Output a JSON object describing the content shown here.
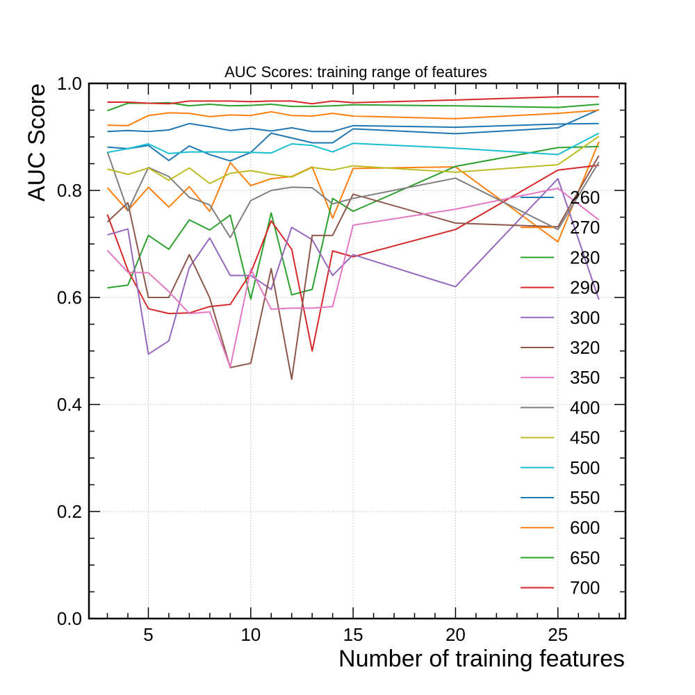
{
  "chart_data": {
    "type": "line",
    "title": "AUC Scores: training range of features",
    "xlabel": "Number of training features",
    "ylabel": "AUC Score",
    "xlim": [
      2.1,
      28.3
    ],
    "ylim": [
      0.0,
      1.0
    ],
    "xticks": [
      5,
      10,
      15,
      20,
      25
    ],
    "xtick_labels": [
      "5",
      "10",
      "15",
      "20",
      "25"
    ],
    "yticks": [
      0.0,
      0.2,
      0.4,
      0.6,
      0.8,
      1.0
    ],
    "ytick_labels": [
      "0.0",
      "0.2",
      "0.4",
      "0.6",
      "0.8",
      "1.0"
    ],
    "grid": true,
    "legend_position": "right",
    "x": [
      3,
      4,
      5,
      6,
      7,
      8,
      9,
      10,
      11,
      12,
      13,
      14,
      15,
      20,
      25,
      27
    ],
    "series": [
      {
        "name": "260",
        "color": "#1f77b4",
        "values": [
          0.881,
          0.878,
          0.884,
          0.856,
          0.883,
          0.867,
          0.855,
          0.871,
          0.907,
          0.898,
          0.889,
          0.889,
          0.915,
          0.906,
          0.917,
          0.951
        ]
      },
      {
        "name": "270",
        "color": "#ff7f0e",
        "values": [
          0.805,
          0.762,
          0.806,
          0.769,
          0.807,
          0.761,
          0.852,
          0.809,
          0.822,
          0.826,
          0.844,
          0.748,
          0.841,
          0.844,
          0.704,
          0.891
        ]
      },
      {
        "name": "280",
        "color": "#2ca02c",
        "values": [
          0.618,
          0.623,
          0.716,
          0.69,
          0.745,
          0.726,
          0.754,
          0.597,
          0.758,
          0.605,
          0.615,
          0.785,
          0.761,
          0.845,
          0.88,
          0.882
        ]
      },
      {
        "name": "290",
        "color": "#d62728",
        "values": [
          0.755,
          0.651,
          0.579,
          0.57,
          0.571,
          0.583,
          0.587,
          0.646,
          0.743,
          0.69,
          0.5,
          0.687,
          0.676,
          0.727,
          0.838,
          0.847
        ]
      },
      {
        "name": "300",
        "color": "#9467bd",
        "values": [
          0.717,
          0.728,
          0.494,
          0.519,
          0.656,
          0.711,
          0.641,
          0.641,
          0.615,
          0.731,
          0.708,
          0.641,
          0.68,
          0.62,
          0.822,
          0.596
        ]
      },
      {
        "name": "320",
        "color": "#8c564b",
        "values": [
          0.741,
          0.777,
          0.6,
          0.6,
          0.68,
          0.599,
          0.469,
          0.477,
          0.654,
          0.447,
          0.716,
          0.716,
          0.793,
          0.739,
          0.732,
          0.865
        ]
      },
      {
        "name": "350",
        "color": "#e377c2",
        "values": [
          0.688,
          0.647,
          0.646,
          0.611,
          0.57,
          0.573,
          0.47,
          0.653,
          0.578,
          0.58,
          0.58,
          0.583,
          0.735,
          0.765,
          0.804,
          0.745
        ]
      },
      {
        "name": "400",
        "color": "#7f7f7f",
        "values": [
          0.872,
          0.762,
          0.843,
          0.826,
          0.787,
          0.773,
          0.712,
          0.781,
          0.8,
          0.806,
          0.805,
          0.775,
          0.785,
          0.823,
          0.727,
          0.853
        ]
      },
      {
        "name": "450",
        "color": "#bcbd22",
        "values": [
          0.84,
          0.83,
          0.842,
          0.819,
          0.842,
          0.813,
          0.832,
          0.837,
          0.83,
          0.825,
          0.843,
          0.838,
          0.846,
          0.834,
          0.848,
          0.901
        ]
      },
      {
        "name": "500",
        "color": "#17becf",
        "values": [
          0.871,
          0.878,
          0.887,
          0.869,
          0.872,
          0.872,
          0.872,
          0.871,
          0.87,
          0.887,
          0.884,
          0.872,
          0.888,
          0.879,
          0.867,
          0.907
        ]
      },
      {
        "name": "550",
        "color": "#1f77b4",
        "values": [
          0.91,
          0.912,
          0.91,
          0.913,
          0.925,
          0.919,
          0.912,
          0.916,
          0.911,
          0.917,
          0.91,
          0.91,
          0.921,
          0.918,
          0.924,
          0.925
        ]
      },
      {
        "name": "600",
        "color": "#ff7f0e",
        "values": [
          0.922,
          0.921,
          0.94,
          0.945,
          0.944,
          0.938,
          0.941,
          0.94,
          0.947,
          0.94,
          0.939,
          0.944,
          0.939,
          0.934,
          0.944,
          0.95
        ]
      },
      {
        "name": "650",
        "color": "#2ca02c",
        "values": [
          0.949,
          0.963,
          0.963,
          0.964,
          0.958,
          0.961,
          0.958,
          0.959,
          0.961,
          0.957,
          0.957,
          0.958,
          0.96,
          0.958,
          0.955,
          0.961
        ]
      },
      {
        "name": "700",
        "color": "#d62728",
        "values": [
          0.965,
          0.965,
          0.963,
          0.962,
          0.967,
          0.967,
          0.967,
          0.966,
          0.967,
          0.967,
          0.962,
          0.967,
          0.964,
          0.969,
          0.975,
          0.975
        ]
      }
    ]
  }
}
